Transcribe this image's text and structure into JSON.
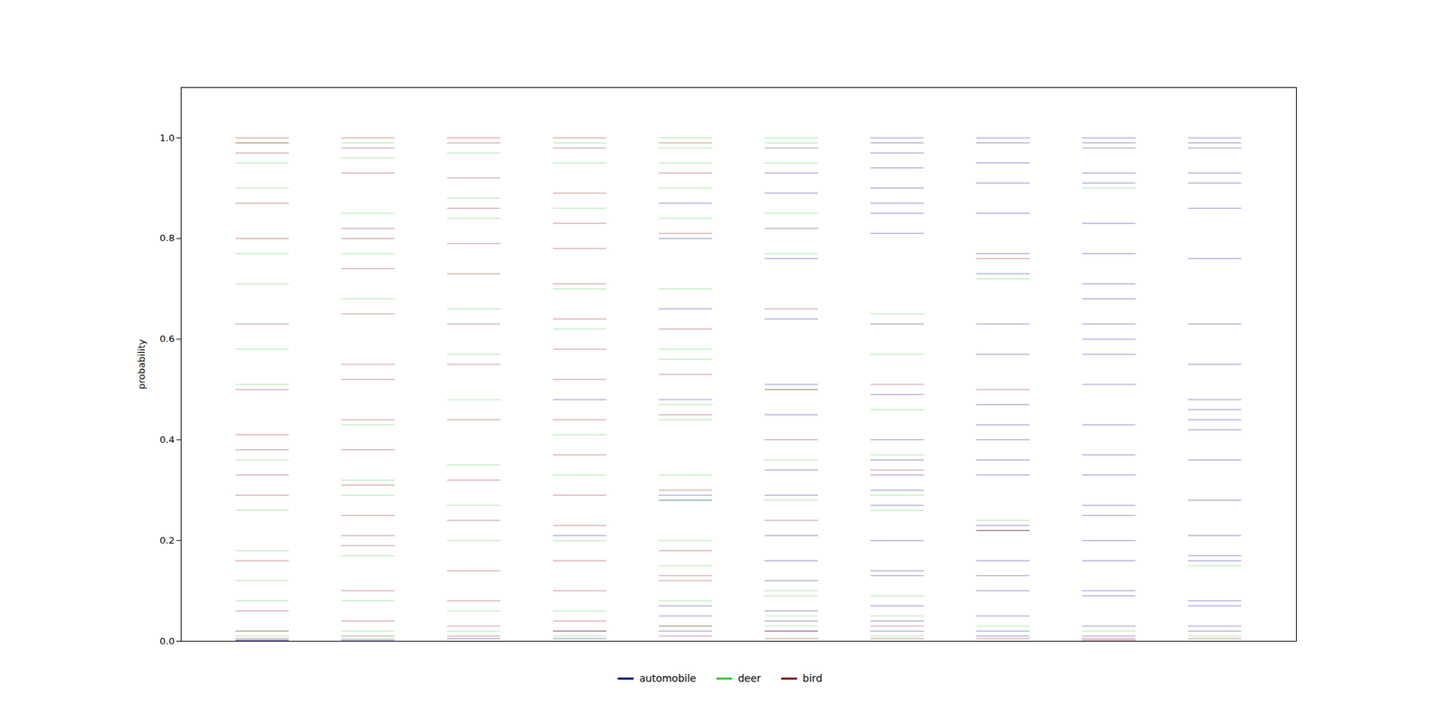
{
  "chart_data": {
    "type": "strip",
    "ylabel": "probability",
    "categories": [
      null,
      null,
      null,
      null,
      null,
      null,
      null,
      null,
      null,
      null
    ],
    "ylim": [
      0,
      1.1
    ],
    "yticks": [
      {
        "value": 0,
        "label": "0.0"
      },
      {
        "value": 0.2,
        "label": "0.2"
      },
      {
        "value": 0.4,
        "label": "0.4"
      },
      {
        "value": 0.6,
        "label": "0.6"
      },
      {
        "value": 0.8,
        "label": "0.8"
      },
      {
        "value": 1,
        "label": "1.0"
      }
    ],
    "legend": "bottom",
    "series": [
      {
        "name": "automobile",
        "color": "#00008b",
        "values": [
          [
            0.002,
            0.001,
            0.0
          ],
          [
            0.002,
            0.0
          ],
          [
            0.005
          ],
          [
            0.48,
            0.21,
            0.02,
            0.005
          ],
          [
            0.87,
            0.8,
            0.66,
            0.48,
            0.29,
            0.28,
            0.07,
            0.05,
            0.02
          ],
          [
            0.98,
            0.93,
            0.89,
            0.82,
            0.76,
            0.64,
            0.51,
            0.45,
            0.34,
            0.29,
            0.21,
            0.16,
            0.12,
            0.06,
            0.04,
            0.02
          ],
          [
            1.0,
            0.99,
            0.97,
            0.94,
            0.9,
            0.87,
            0.85,
            0.81,
            0.63,
            0.49,
            0.4,
            0.36,
            0.33,
            0.3,
            0.27,
            0.2,
            0.14,
            0.13,
            0.07,
            0.04,
            0.02
          ],
          [
            1.0,
            0.99,
            0.95,
            0.91,
            0.85,
            0.77,
            0.73,
            0.63,
            0.57,
            0.47,
            0.43,
            0.4,
            0.36,
            0.33,
            0.23,
            0.22,
            0.16,
            0.13,
            0.1,
            0.05,
            0.02,
            0.01
          ],
          [
            1.0,
            0.99,
            0.98,
            0.93,
            0.91,
            0.83,
            0.77,
            0.71,
            0.68,
            0.63,
            0.6,
            0.57,
            0.51,
            0.43,
            0.37,
            0.33,
            0.27,
            0.25,
            0.2,
            0.16,
            0.1,
            0.09,
            0.03,
            0.01
          ],
          [
            1.0,
            0.99,
            0.98,
            0.93,
            0.91,
            0.86,
            0.76,
            0.63,
            0.55,
            0.48,
            0.46,
            0.44,
            0.42,
            0.36,
            0.28,
            0.21,
            0.17,
            0.16,
            0.08,
            0.07,
            0.03,
            0.02
          ]
        ]
      },
      {
        "name": "deer",
        "color": "#32cd32",
        "values": [
          [
            0.99,
            0.95,
            0.9,
            0.77,
            0.71,
            0.58,
            0.51,
            0.36,
            0.26,
            0.18,
            0.12,
            0.08,
            0.02,
            0.01
          ],
          [
            0.99,
            0.96,
            0.85,
            0.77,
            0.68,
            0.43,
            0.32,
            0.29,
            0.17,
            0.08,
            0.02,
            0.005
          ],
          [
            0.97,
            0.88,
            0.84,
            0.66,
            0.57,
            0.48,
            0.35,
            0.27,
            0.2,
            0.06,
            0.02
          ],
          [
            0.99,
            0.95,
            0.86,
            0.7,
            0.62,
            0.41,
            0.33,
            0.2,
            0.06,
            0.01
          ],
          [
            1.0,
            0.98,
            0.95,
            0.9,
            0.84,
            0.7,
            0.58,
            0.56,
            0.47,
            0.44,
            0.33,
            0.28,
            0.2,
            0.15,
            0.08,
            0.03
          ],
          [
            1.0,
            0.99,
            0.95,
            0.85,
            0.77,
            0.5,
            0.36,
            0.28,
            0.1,
            0.09,
            0.05,
            0.03
          ],
          [
            0.65,
            0.57,
            0.46,
            0.37,
            0.29,
            0.26,
            0.09,
            0.05,
            0.01
          ],
          [
            0.72,
            0.24,
            0.03
          ],
          [
            0.9,
            0.02
          ],
          [
            0.15,
            0.01
          ]
        ]
      },
      {
        "name": "bird",
        "color": "#8b0000",
        "values": [
          [
            1.0,
            0.99,
            0.97,
            0.87,
            0.8,
            0.63,
            0.5,
            0.41,
            0.38,
            0.33,
            0.29,
            0.16,
            0.06,
            0.02,
            0.005
          ],
          [
            1.0,
            0.98,
            0.93,
            0.82,
            0.8,
            0.74,
            0.65,
            0.55,
            0.52,
            0.44,
            0.38,
            0.31,
            0.25,
            0.21,
            0.19,
            0.1,
            0.04,
            0.01
          ],
          [
            1.0,
            0.99,
            0.92,
            0.86,
            0.79,
            0.73,
            0.63,
            0.55,
            0.44,
            0.32,
            0.24,
            0.14,
            0.08,
            0.03,
            0.01
          ],
          [
            1.0,
            0.98,
            0.89,
            0.83,
            0.78,
            0.71,
            0.64,
            0.58,
            0.52,
            0.44,
            0.37,
            0.29,
            0.23,
            0.16,
            0.1,
            0.04,
            0.02
          ],
          [
            0.99,
            0.93,
            0.81,
            0.62,
            0.53,
            0.45,
            0.3,
            0.18,
            0.13,
            0.12,
            0.03,
            0.01
          ],
          [
            0.66,
            0.5,
            0.4,
            0.24,
            0.02,
            0.005
          ],
          [
            0.51,
            0.34,
            0.03,
            0.005
          ],
          [
            0.76,
            0.5,
            0.22,
            0.005
          ],
          [
            0.005,
            0.002
          ],
          [
            0.005
          ]
        ]
      }
    ]
  }
}
